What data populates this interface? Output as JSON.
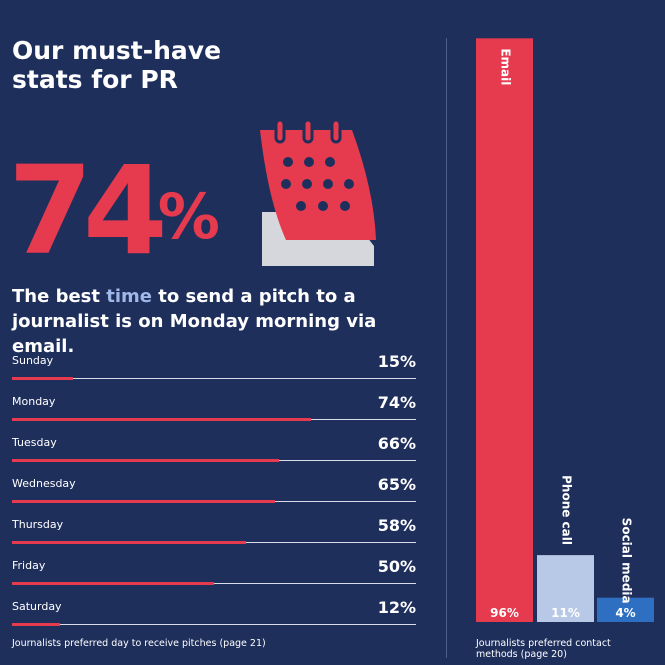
{
  "title": "Our must-have stats for PR",
  "big_stat": {
    "value": "74",
    "sign": "%"
  },
  "headline": {
    "before": "The best ",
    "highlight": "time",
    "after": " to send a pitch to a journalist is on Monday morning via email."
  },
  "colors": {
    "background": "#1f2f5c",
    "accent_red": "#e63a4e",
    "light_blue": "#b8c9e8",
    "mid_blue": "#2f6fc2",
    "calendar_base": "#d5d7dc"
  },
  "icons": {
    "calendar": "calendar-icon"
  },
  "chart_data": [
    {
      "type": "bar",
      "orientation": "horizontal",
      "title": "Journalists preferred day to receive pitches (page 21)",
      "categories": [
        "Sunday",
        "Monday",
        "Tuesday",
        "Wednesday",
        "Thursday",
        "Friday",
        "Saturday"
      ],
      "values": [
        15,
        74,
        66,
        65,
        58,
        50,
        12
      ],
      "labels": [
        "15%",
        "74%",
        "66%",
        "65%",
        "58%",
        "50%",
        "12%"
      ],
      "xlim": [
        0,
        100
      ],
      "unit": "%"
    },
    {
      "type": "bar",
      "orientation": "vertical",
      "title": "Journalists preferred contact methods (page 20)",
      "categories": [
        "Email",
        "Phone call",
        "Social media"
      ],
      "values": [
        96,
        11,
        4
      ],
      "labels": [
        "96%",
        "11%",
        "4%"
      ],
      "colors": [
        "#e63a4e",
        "#b8c9e8",
        "#2f6fc2"
      ],
      "ylim": [
        0,
        100
      ],
      "unit": "%"
    }
  ]
}
